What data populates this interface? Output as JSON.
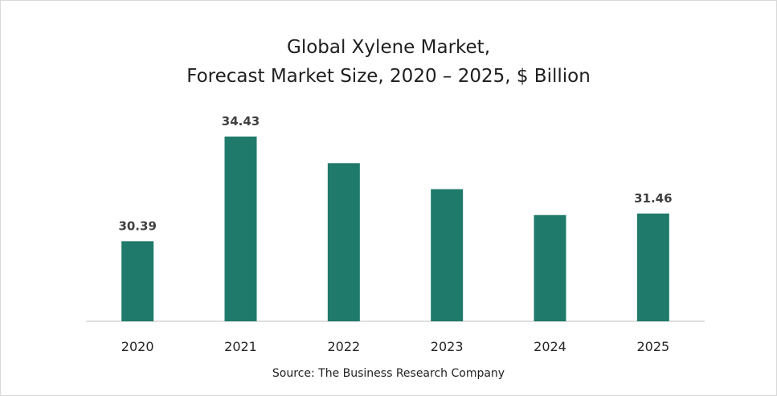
{
  "chart_data": {
    "type": "bar",
    "title_line1": "Global Xylene Market,",
    "title_line2": "Forecast Market Size, 2020 – 2025, $ Billion",
    "categories": [
      "2020",
      "2021",
      "2022",
      "2023",
      "2024",
      "2025"
    ],
    "values": [
      30.39,
      34.43,
      33.4,
      32.4,
      31.4,
      31.46
    ],
    "data_labels": [
      "30.39",
      "34.43",
      "",
      "",
      "",
      "31.46"
    ],
    "xlabel": "",
    "ylabel": "",
    "ylim": [
      27.3,
      34.43
    ],
    "grid": false,
    "bar_color": "#1f7a6b",
    "source": "Source: The Business Research Company"
  }
}
